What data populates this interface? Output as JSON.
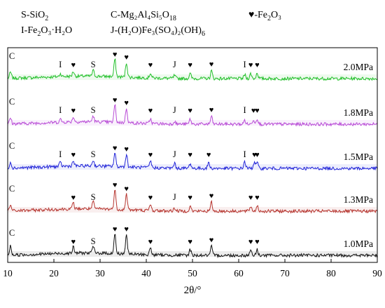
{
  "chart_data": {
    "type": "line",
    "title": "",
    "xlabel": "2θ/°",
    "ylabel": "",
    "xlim": [
      10,
      90
    ],
    "x_ticks": [
      10,
      20,
      30,
      40,
      50,
      60,
      70,
      80,
      90
    ],
    "grid": false,
    "legend": {
      "placement": "top",
      "entries": [
        {
          "symbol": "S",
          "text": "-SiO",
          "sub": "2",
          "tail": ""
        },
        {
          "symbol": "I",
          "text": "-Fe",
          "sub": "2",
          "tail": "O₃·H₂O"
        },
        {
          "symbol": "C",
          "text": "-Mg₂Al₄Si₅O",
          "sub": "18",
          "tail": ""
        },
        {
          "symbol": "J",
          "text": "-(H₂O)Fe₃(SO₄)₂(OH)",
          "sub": "6",
          "tail": ""
        },
        {
          "symbol": "♥",
          "text": "-Fe",
          "sub": "2",
          "tail": "O₃"
        }
      ]
    },
    "series": [
      {
        "name": "2.0MPa",
        "color": "#22c02a",
        "peaks": [
          [
            10.6,
            0.3
          ],
          [
            21.4,
            0.15
          ],
          [
            24.2,
            0.25
          ],
          [
            28.5,
            0.3
          ],
          [
            33.2,
            0.9
          ],
          [
            35.7,
            0.75
          ],
          [
            40.9,
            0.25
          ],
          [
            46.1,
            0.15
          ],
          [
            49.5,
            0.25
          ],
          [
            54.1,
            0.4
          ],
          [
            61.3,
            0.2
          ],
          [
            62.6,
            0.25
          ],
          [
            64.0,
            0.3
          ]
        ],
        "labels": [
          {
            "text": "C",
            "x": 10.6
          },
          {
            "text": "I",
            "x": 21.4
          },
          {
            "text": "♥",
            "x": 24.2
          },
          {
            "text": "S",
            "x": 28.5
          },
          {
            "text": "♥",
            "x": 33.2
          },
          {
            "text": "♥",
            "x": 35.7
          },
          {
            "text": "♥",
            "x": 40.9
          },
          {
            "text": "J",
            "x": 46.1
          },
          {
            "text": "♥",
            "x": 49.5
          },
          {
            "text": "♥",
            "x": 54.1
          },
          {
            "text": "I",
            "x": 61.3
          },
          {
            "text": "♥",
            "x": 62.6
          },
          {
            "text": "♥",
            "x": 64.0
          }
        ]
      },
      {
        "name": "1.8MPa",
        "color": "#b84ad6",
        "peaks": [
          [
            10.6,
            0.3
          ],
          [
            21.4,
            0.15
          ],
          [
            24.2,
            0.25
          ],
          [
            28.5,
            0.3
          ],
          [
            33.2,
            0.9
          ],
          [
            35.7,
            0.75
          ],
          [
            40.9,
            0.25
          ],
          [
            46.1,
            0.15
          ],
          [
            49.5,
            0.25
          ],
          [
            54.1,
            0.4
          ],
          [
            61.3,
            0.2
          ],
          [
            63.2,
            0.25
          ],
          [
            64.0,
            0.3
          ]
        ],
        "labels": [
          {
            "text": "C",
            "x": 10.6
          },
          {
            "text": "I",
            "x": 21.4
          },
          {
            "text": "♥",
            "x": 24.2
          },
          {
            "text": "S",
            "x": 28.5
          },
          {
            "text": "♥",
            "x": 33.2
          },
          {
            "text": "♥",
            "x": 35.7
          },
          {
            "text": "♥",
            "x": 40.9
          },
          {
            "text": "J",
            "x": 46.1
          },
          {
            "text": "♥",
            "x": 49.5
          },
          {
            "text": "♥",
            "x": 54.1
          },
          {
            "text": "I",
            "x": 61.3
          },
          {
            "text": "♥",
            "x": 63.2
          },
          {
            "text": "♥",
            "x": 64.0
          }
        ]
      },
      {
        "name": "1.5MPa",
        "color": "#1f22d8",
        "peaks": [
          [
            10.6,
            0.3
          ],
          [
            21.4,
            0.2
          ],
          [
            24.2,
            0.25
          ],
          [
            28.5,
            0.3
          ],
          [
            33.2,
            0.7
          ],
          [
            35.7,
            0.65
          ],
          [
            40.9,
            0.35
          ],
          [
            46.1,
            0.25
          ],
          [
            49.5,
            0.25
          ],
          [
            53.5,
            0.3
          ],
          [
            61.3,
            0.35
          ],
          [
            63.4,
            0.35
          ],
          [
            64.0,
            0.3
          ]
        ],
        "labels": [
          {
            "text": "C",
            "x": 10.6
          },
          {
            "text": "I",
            "x": 21.4
          },
          {
            "text": "♥",
            "x": 24.2
          },
          {
            "text": "S",
            "x": 28.5
          },
          {
            "text": "♥",
            "x": 33.2
          },
          {
            "text": "♥",
            "x": 35.7
          },
          {
            "text": "♥",
            "x": 40.9
          },
          {
            "text": "J",
            "x": 46.1
          },
          {
            "text": "♥",
            "x": 49.5
          },
          {
            "text": "♥",
            "x": 53.5
          },
          {
            "text": "I",
            "x": 61.3
          },
          {
            "text": "♥",
            "x": 63.4
          },
          {
            "text": "♥",
            "x": 64.0
          }
        ]
      },
      {
        "name": "1.3MPa",
        "color": "#b5332d",
        "peaks": [
          [
            10.6,
            0.3
          ],
          [
            24.2,
            0.3
          ],
          [
            28.5,
            0.35
          ],
          [
            33.2,
            1.0
          ],
          [
            35.7,
            0.8
          ],
          [
            40.9,
            0.3
          ],
          [
            46.1,
            0.15
          ],
          [
            49.5,
            0.25
          ],
          [
            54.1,
            0.45
          ],
          [
            62.6,
            0.25
          ],
          [
            64.0,
            0.3
          ]
        ],
        "labels": [
          {
            "text": "C",
            "x": 10.6
          },
          {
            "text": "♥",
            "x": 24.2
          },
          {
            "text": "S",
            "x": 28.5
          },
          {
            "text": "♥",
            "x": 33.2
          },
          {
            "text": "♥",
            "x": 35.7
          },
          {
            "text": "♥",
            "x": 40.9
          },
          {
            "text": "J",
            "x": 46.1
          },
          {
            "text": "♥",
            "x": 49.5
          },
          {
            "text": "♥",
            "x": 54.1
          },
          {
            "text": "♥",
            "x": 62.6
          },
          {
            "text": "♥",
            "x": 64.0
          }
        ]
      },
      {
        "name": "1.0MPa",
        "color": "#111111",
        "peaks": [
          [
            10.6,
            0.45
          ],
          [
            24.2,
            0.3
          ],
          [
            28.5,
            0.35
          ],
          [
            33.2,
            1.0
          ],
          [
            35.7,
            1.0
          ],
          [
            40.9,
            0.35
          ],
          [
            49.5,
            0.3
          ],
          [
            54.1,
            0.45
          ],
          [
            62.6,
            0.3
          ],
          [
            64.0,
            0.3
          ]
        ],
        "labels": [
          {
            "text": "C",
            "x": 10.6
          },
          {
            "text": "♥",
            "x": 24.2
          },
          {
            "text": "S",
            "x": 28.5
          },
          {
            "text": "♥",
            "x": 33.2
          },
          {
            "text": "♥",
            "x": 35.7
          },
          {
            "text": "♥",
            "x": 40.9
          },
          {
            "text": "♥",
            "x": 49.5
          },
          {
            "text": "♥",
            "x": 54.1
          },
          {
            "text": "♥",
            "x": 62.6
          },
          {
            "text": "♥",
            "x": 64.0
          }
        ]
      }
    ]
  }
}
